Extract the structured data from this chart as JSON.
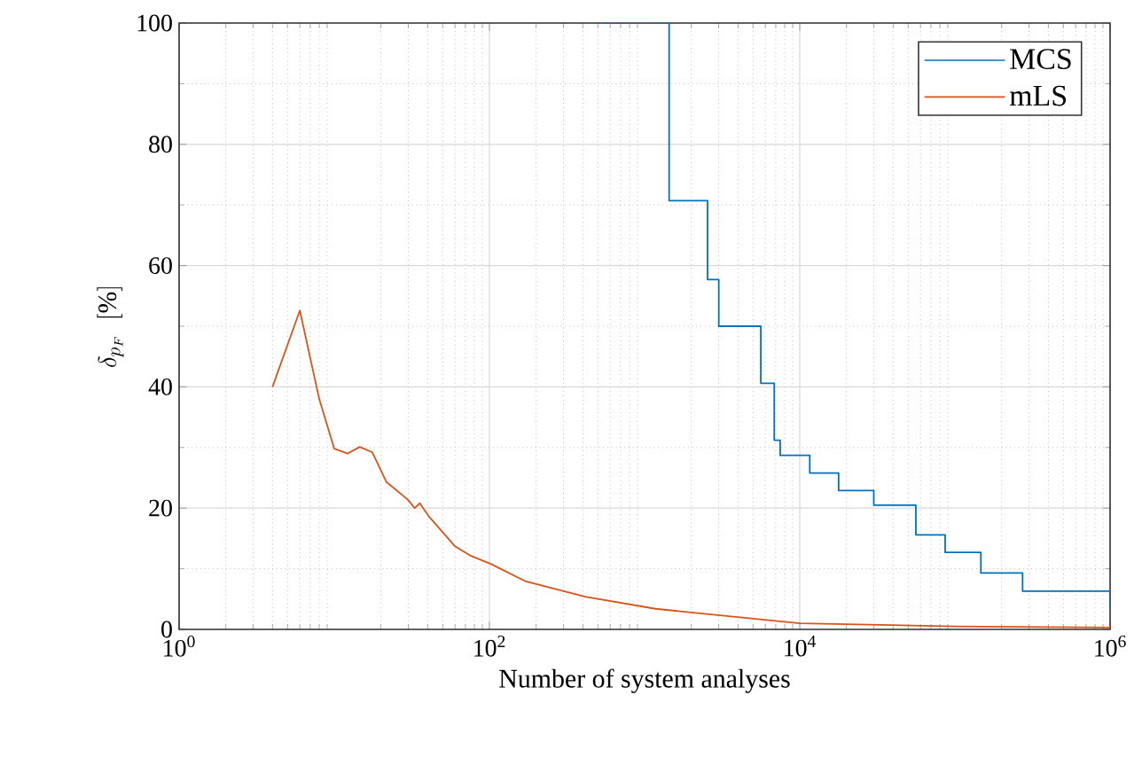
{
  "chart_data": {
    "type": "line",
    "xlabel": "Number of system analyses",
    "ylabel": "\\delta_{p_F}\\;\\;[\\%]",
    "log": "x",
    "grid": true,
    "legend": "top right",
    "xlim": [
      1,
      1000000
    ],
    "ylim": [
      0,
      100
    ],
    "xticks": [
      {
        "value": 1,
        "label": "10$^{0}$"
      },
      {
        "value": 100,
        "label": "10$^{2}$"
      },
      {
        "value": 10000,
        "label": "10$^{4}$"
      },
      {
        "value": 1000000,
        "label": "10$^{6}$"
      }
    ],
    "yticks": [
      0,
      20,
      40,
      60,
      80,
      100
    ],
    "series": [
      {
        "name": "MCS",
        "type": "step",
        "color": "#0072bd",
        "x": [
          540,
          1439,
          2546,
          3007,
          5610,
          6850,
          7480,
          11600,
          17800,
          30000,
          56000,
          86500,
          147000,
          273000,
          1000000
        ],
        "values": [
          100,
          70.7,
          57.7,
          50.0,
          40.6,
          31.2,
          28.7,
          25.8,
          22.9,
          20.5,
          15.6,
          12.7,
          9.3,
          6.3,
          3.6
        ]
      },
      {
        "name": "mLS",
        "color": "#d95319",
        "x": [
          4,
          6,
          8,
          10,
          12.2,
          14.6,
          17.6,
          21.7,
          29.8,
          33,
          35.6,
          40.5,
          60,
          75,
          102,
          172,
          414,
          1175,
          10000,
          100000,
          1000000
        ],
        "values": [
          40,
          52.6,
          38,
          29.8,
          29,
          30.1,
          29.2,
          24.3,
          21.4,
          20,
          20.8,
          18.7,
          13.7,
          12.2,
          10.8,
          7.9,
          5.4,
          3.4,
          1.0,
          0.5,
          0.3
        ]
      }
    ]
  }
}
